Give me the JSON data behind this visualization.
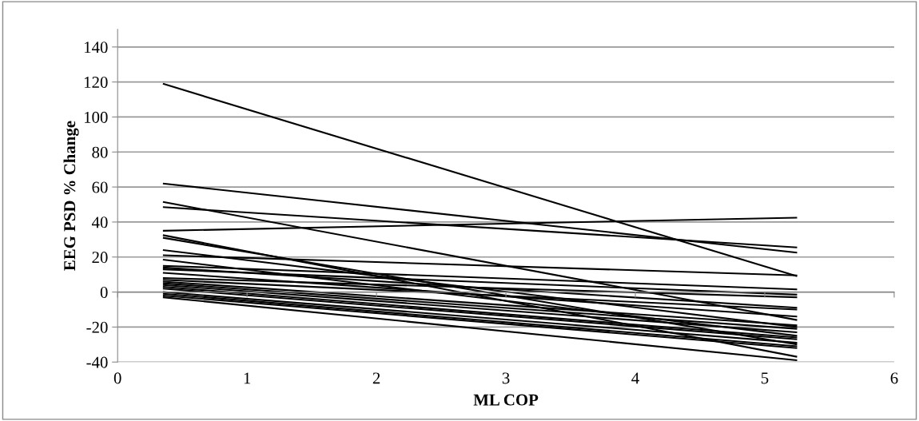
{
  "chart_data": {
    "type": "line",
    "xlabel": "ML COP",
    "ylabel": "EEG PSD % Change",
    "xlim": [
      0,
      6
    ],
    "xticks": [
      0,
      1,
      2,
      3,
      4,
      5,
      6
    ],
    "ylim": [
      -40,
      150
    ],
    "yticks": [
      -40,
      -20,
      0,
      20,
      40,
      60,
      80,
      100,
      120,
      140
    ],
    "x": [
      0.35,
      5.25
    ],
    "grid": "y",
    "legend": false,
    "marker": "none",
    "line_style": "solid",
    "series": [
      {
        "color": "#000000",
        "values": [
          119,
          9
        ]
      },
      {
        "color": "#000000",
        "values": [
          62,
          22.5
        ]
      },
      {
        "color": "#000000",
        "values": [
          51.5,
          -16
        ]
      },
      {
        "color": "#000000",
        "values": [
          48.5,
          25.5
        ]
      },
      {
        "color": "#000000",
        "values": [
          35,
          42.5
        ]
      },
      {
        "color": "#000000",
        "values": [
          32.5,
          -37
        ]
      },
      {
        "color": "#000000",
        "values": [
          31,
          -30
        ]
      },
      {
        "color": "#000000",
        "values": [
          24,
          -20
        ]
      },
      {
        "color": "#000000",
        "values": [
          21,
          9.5
        ]
      },
      {
        "color": "#000000",
        "values": [
          18.5,
          -25
        ]
      },
      {
        "color": "#000000",
        "values": [
          15,
          1.5
        ]
      },
      {
        "color": "#000000",
        "values": [
          14,
          -9
        ]
      },
      {
        "color": "#000000",
        "values": [
          13,
          -1.5
        ]
      },
      {
        "color": "#000000",
        "values": [
          11,
          -14
        ]
      },
      {
        "color": "#000000",
        "values": [
          8,
          -3
        ]
      },
      {
        "color": "#000000",
        "values": [
          7,
          -10
        ]
      },
      {
        "color": "#000000",
        "values": [
          6,
          -19
        ]
      },
      {
        "color": "#000000",
        "values": [
          5,
          -21
        ]
      },
      {
        "color": "#000000",
        "values": [
          4,
          -23
        ]
      },
      {
        "color": "#000000",
        "values": [
          3,
          -26
        ]
      },
      {
        "color": "#000000",
        "values": [
          2,
          -27
        ]
      },
      {
        "color": "#000000",
        "values": [
          0,
          -29
        ]
      },
      {
        "color": "#000000",
        "values": [
          -1,
          -31
        ]
      },
      {
        "color": "#000000",
        "values": [
          -2,
          -32
        ]
      },
      {
        "color": "#000000",
        "values": [
          -3,
          -39
        ]
      }
    ]
  }
}
